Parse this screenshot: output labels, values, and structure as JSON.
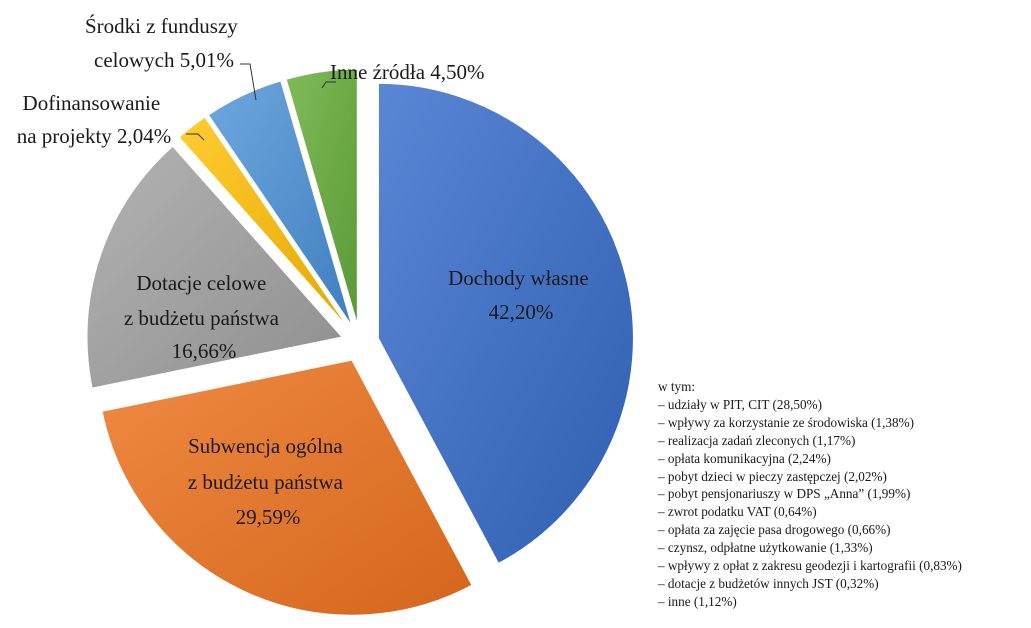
{
  "chart_data": {
    "type": "pie",
    "exploded": true,
    "slices": [
      {
        "name": "Dochody własne",
        "value": 42.2,
        "label_lines": [
          "Dochody własne",
          "42,20%"
        ],
        "color": "#4472c4"
      },
      {
        "name": "Subwencja ogólna z budżetu państwa",
        "value": 29.59,
        "label_lines": [
          "Subwencja ogólna",
          "z budżetu państwa",
          "29,59%"
        ],
        "color": "#ed7d31"
      },
      {
        "name": "Dotacje celowe z budżetu państwa",
        "value": 16.66,
        "label_lines": [
          "Dotacje celowe",
          "z budżetu państwa",
          "16,66%"
        ],
        "color": "#a5a5a5"
      },
      {
        "name": "Dofinansowanie na projekty",
        "value": 2.04,
        "label_lines": [
          "Dofinansowanie",
          "na projekty 2,04%"
        ],
        "color": "#ffc000"
      },
      {
        "name": "Środki z funduszy celowych",
        "value": 5.01,
        "label_lines": [
          "Środki z funduszy",
          "celowych 5,01%"
        ],
        "color": "#5b9bd5"
      },
      {
        "name": "Inne źródła",
        "value": 4.5,
        "label_lines": [
          "Inne źródła 4,50%"
        ],
        "color": "#70ad47"
      }
    ]
  },
  "breakdown": {
    "heading": "w tym:",
    "items": [
      "– udziały w PIT, CIT (28,50%)",
      "– wpływy za korzystanie ze środowiska (1,38%)",
      "– realizacja zadań zleconych (1,17%)",
      "– opłata komunikacyjna (2,24%)",
      "– pobyt dzieci w pieczy zastępczej (2,02%)",
      "– pobyt pensjonariuszy w DPS „Anna” (1,99%)",
      "– zwrot podatku VAT (0,64%)",
      "– opłata za zajęcie pasa drogowego (0,66%)",
      "– czynsz, odpłatne użytkowanie (1,33%)",
      "– wpływy z opłat z zakresu geodezji i kartografii (0,83%)",
      "– dotacje z budżetów innych JST (0,32%)",
      "– inne (1,12%)"
    ]
  }
}
